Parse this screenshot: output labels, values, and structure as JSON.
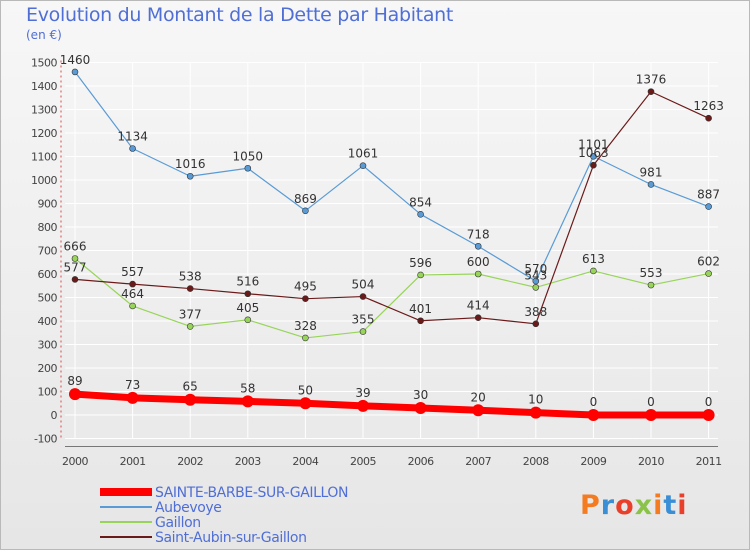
{
  "colors": {
    "sainte": "#ff0000",
    "aubevoye": "#5a9bd5",
    "gaillon": "#98d45a",
    "saint_aubin": "#6b1a1a"
  },
  "chart_data": {
    "type": "line",
    "title": "Evolution du Montant de la Dette par Habitant",
    "subtitle": "(en €)",
    "x": [
      "2000",
      "2001",
      "2002",
      "2003",
      "2004",
      "2005",
      "2006",
      "2007",
      "2008",
      "2009",
      "2010",
      "2011"
    ],
    "ylim": [
      -100,
      1500
    ],
    "yticks": [
      -100,
      0,
      100,
      200,
      300,
      400,
      500,
      600,
      700,
      800,
      900,
      1000,
      1100,
      1200,
      1300,
      1400,
      1500
    ],
    "grid": true,
    "legend_position": "bottom-left",
    "series": [
      {
        "name": "SAINTE-BARBE-SUR-GAILLON",
        "key": "sainte",
        "values": [
          89,
          73,
          65,
          58,
          50,
          39,
          30,
          20,
          10,
          0,
          0,
          0
        ]
      },
      {
        "name": "Aubevoye",
        "key": "aubevoye",
        "values": [
          1460,
          1134,
          1016,
          1050,
          869,
          1061,
          854,
          718,
          570,
          1101,
          981,
          887
        ]
      },
      {
        "name": "Gaillon",
        "key": "gaillon",
        "values": [
          666,
          464,
          377,
          405,
          328,
          355,
          596,
          600,
          543,
          613,
          553,
          602
        ]
      },
      {
        "name": "Saint-Aubin-sur-Gaillon",
        "key": "saint_aubin",
        "values": [
          577,
          557,
          538,
          516,
          495,
          504,
          401,
          414,
          388,
          1063,
          1376,
          1263
        ]
      }
    ]
  },
  "logo": {
    "text": "Proxiti"
  }
}
